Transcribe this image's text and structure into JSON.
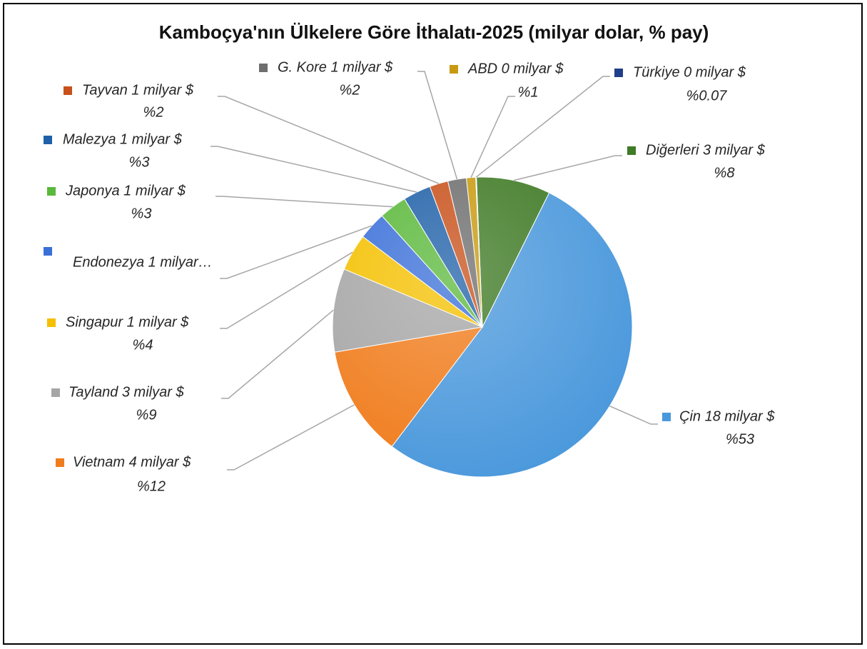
{
  "chart_data": {
    "type": "pie",
    "title": "Kamboçya'nın Ülkelere Göre İthalatı-2025 (milyar dolar, % pay)",
    "categories": [
      "Diğerleri 3 milyar $",
      "Çin 18 milyar $",
      "Vietnam 4 milyar $",
      "Tayland 3 milyar $",
      "Singapur 1 milyar $",
      "Endonezya 1 milyar…",
      "Japonya 1 milyar $",
      "Malezya 1 milyar $",
      "Tayvan 1 milyar $",
      "G. Kore 1 milyar $",
      "ABD 0 milyar $",
      "Türkiye 0 milyar $"
    ],
    "values": [
      8,
      53,
      12,
      9,
      4,
      3,
      3,
      3,
      2,
      2,
      1,
      0.07
    ],
    "value_labels": [
      "%8",
      "%53",
      "%12",
      "%9",
      "%4",
      null,
      "%3",
      "%3",
      "%2",
      "%2",
      "%1",
      "%0.07"
    ],
    "colors": [
      "#3f7a25",
      "#4a98dc",
      "#f07c1c",
      "#a6a6a6",
      "#f4c000",
      "#3a6fd8",
      "#5ab83a",
      "#1f60a8",
      "#c8501a",
      "#6e6e6e",
      "#c89a10",
      "#203f8a"
    ]
  }
}
